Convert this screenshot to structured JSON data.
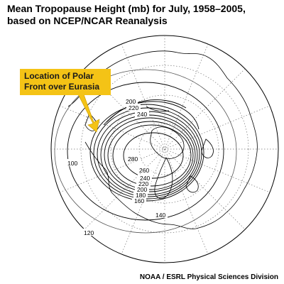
{
  "title": {
    "line1": "Mean Tropopause Height (mb) for July, 1958–2005,",
    "line2": "based on NCEP/NCAR Reanalysis"
  },
  "callout": {
    "line1": "Location of Polar",
    "line2": "Front over Eurasia",
    "color": "#f4c316"
  },
  "credit": "NOAA / ESRL Physical Sciences Division",
  "contour_labels": [
    "100",
    "120",
    "140",
    "160",
    "180",
    "200",
    "220",
    "240",
    "260",
    "280",
    "200",
    "220",
    "240"
  ],
  "projection": "north polar stereographic"
}
